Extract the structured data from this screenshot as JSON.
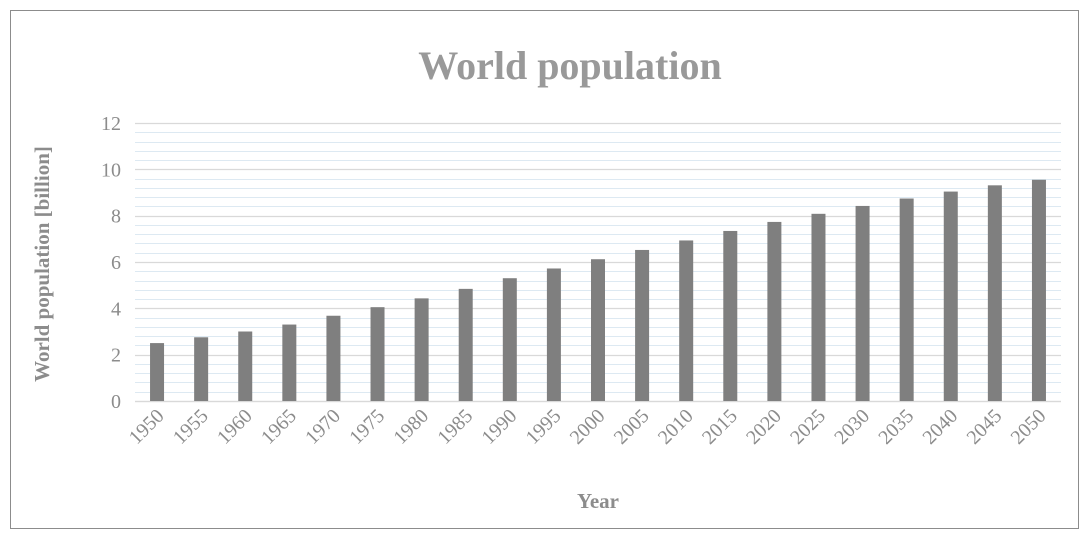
{
  "chart_data": {
    "type": "bar",
    "title": "World population",
    "xlabel": "Year",
    "ylabel": "World population [billion]",
    "categories": [
      "1950",
      "1955",
      "1960",
      "1965",
      "1970",
      "1975",
      "1980",
      "1985",
      "1990",
      "1995",
      "2000",
      "2005",
      "2010",
      "2015",
      "2020",
      "2025",
      "2030",
      "2035",
      "2040",
      "2045",
      "2050"
    ],
    "values": [
      2.5,
      2.75,
      3.0,
      3.3,
      3.68,
      4.05,
      4.43,
      4.84,
      5.3,
      5.72,
      6.12,
      6.52,
      6.93,
      7.34,
      7.73,
      8.08,
      8.42,
      8.74,
      9.04,
      9.31,
      9.55
    ],
    "ylim": [
      0,
      12
    ],
    "yticks": [
      0,
      2,
      4,
      6,
      8,
      10,
      12
    ],
    "grid": true,
    "legend": "none",
    "colors": {
      "bar": "#7f7f7f",
      "major_grid": "#d9d9d9",
      "minor_grid": "#dde9f2",
      "text": "#8c8c8c",
      "title": "#999999"
    }
  }
}
